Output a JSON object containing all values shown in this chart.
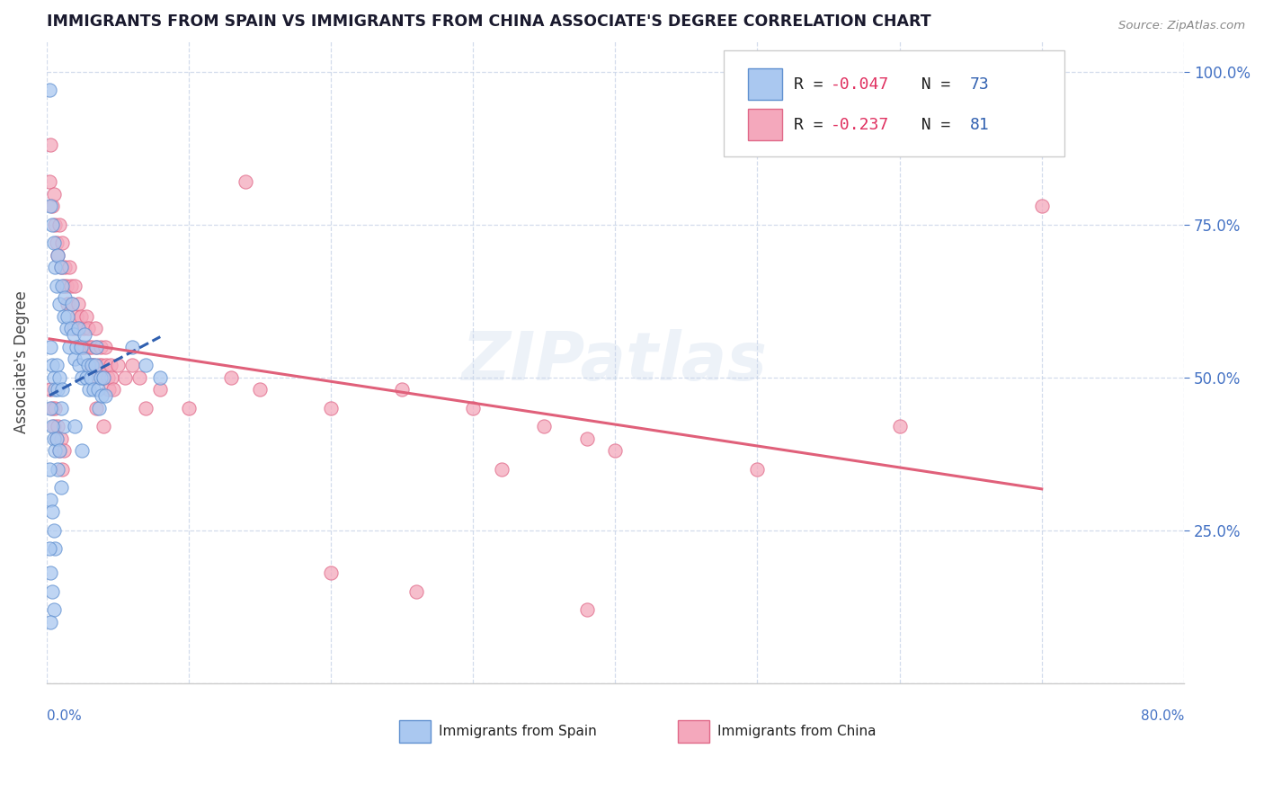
{
  "title": "IMMIGRANTS FROM SPAIN VS IMMIGRANTS FROM CHINA ASSOCIATE'S DEGREE CORRELATION CHART",
  "source": "Source: ZipAtlas.com",
  "ylabel": "Associate's Degree",
  "right_yticks": [
    "25.0%",
    "50.0%",
    "75.0%",
    "100.0%"
  ],
  "right_ytick_vals": [
    0.25,
    0.5,
    0.75,
    1.0
  ],
  "xmin": 0.0,
  "xmax": 0.8,
  "ymin": 0.0,
  "ymax": 1.05,
  "watermark": "ZIPatlas",
  "spain_color": "#aac8f0",
  "china_color": "#f4a8bc",
  "spain_edge_color": "#6090d0",
  "china_edge_color": "#e06888",
  "spain_line_color": "#3060b0",
  "china_line_color": "#e0607a",
  "legend_r_color": "#e03060",
  "legend_n_color": "#3060b0",
  "spain_scatter": [
    [
      0.002,
      0.97
    ],
    [
      0.003,
      0.78
    ],
    [
      0.004,
      0.75
    ],
    [
      0.005,
      0.72
    ],
    [
      0.006,
      0.68
    ],
    [
      0.007,
      0.65
    ],
    [
      0.008,
      0.7
    ],
    [
      0.009,
      0.62
    ],
    [
      0.01,
      0.68
    ],
    [
      0.011,
      0.65
    ],
    [
      0.012,
      0.6
    ],
    [
      0.013,
      0.63
    ],
    [
      0.014,
      0.58
    ],
    [
      0.015,
      0.6
    ],
    [
      0.016,
      0.55
    ],
    [
      0.017,
      0.58
    ],
    [
      0.018,
      0.62
    ],
    [
      0.019,
      0.57
    ],
    [
      0.02,
      0.53
    ],
    [
      0.021,
      0.55
    ],
    [
      0.022,
      0.58
    ],
    [
      0.023,
      0.52
    ],
    [
      0.024,
      0.55
    ],
    [
      0.025,
      0.5
    ],
    [
      0.026,
      0.53
    ],
    [
      0.027,
      0.57
    ],
    [
      0.028,
      0.5
    ],
    [
      0.029,
      0.52
    ],
    [
      0.03,
      0.48
    ],
    [
      0.031,
      0.5
    ],
    [
      0.032,
      0.52
    ],
    [
      0.033,
      0.48
    ],
    [
      0.034,
      0.52
    ],
    [
      0.035,
      0.55
    ],
    [
      0.036,
      0.48
    ],
    [
      0.037,
      0.45
    ],
    [
      0.038,
      0.5
    ],
    [
      0.039,
      0.47
    ],
    [
      0.04,
      0.5
    ],
    [
      0.041,
      0.47
    ],
    [
      0.003,
      0.55
    ],
    [
      0.004,
      0.52
    ],
    [
      0.005,
      0.5
    ],
    [
      0.006,
      0.48
    ],
    [
      0.007,
      0.52
    ],
    [
      0.008,
      0.48
    ],
    [
      0.009,
      0.5
    ],
    [
      0.01,
      0.45
    ],
    [
      0.011,
      0.48
    ],
    [
      0.012,
      0.42
    ],
    [
      0.003,
      0.45
    ],
    [
      0.004,
      0.42
    ],
    [
      0.005,
      0.4
    ],
    [
      0.006,
      0.38
    ],
    [
      0.007,
      0.4
    ],
    [
      0.008,
      0.35
    ],
    [
      0.009,
      0.38
    ],
    [
      0.01,
      0.32
    ],
    [
      0.002,
      0.35
    ],
    [
      0.003,
      0.3
    ],
    [
      0.004,
      0.28
    ],
    [
      0.005,
      0.25
    ],
    [
      0.006,
      0.22
    ],
    [
      0.002,
      0.22
    ],
    [
      0.003,
      0.18
    ],
    [
      0.004,
      0.15
    ],
    [
      0.005,
      0.12
    ],
    [
      0.003,
      0.1
    ],
    [
      0.06,
      0.55
    ],
    [
      0.07,
      0.52
    ],
    [
      0.08,
      0.5
    ],
    [
      0.02,
      0.42
    ],
    [
      0.025,
      0.38
    ]
  ],
  "china_scatter": [
    [
      0.002,
      0.82
    ],
    [
      0.003,
      0.88
    ],
    [
      0.004,
      0.78
    ],
    [
      0.005,
      0.8
    ],
    [
      0.006,
      0.75
    ],
    [
      0.007,
      0.72
    ],
    [
      0.008,
      0.7
    ],
    [
      0.009,
      0.75
    ],
    [
      0.01,
      0.68
    ],
    [
      0.011,
      0.72
    ],
    [
      0.012,
      0.65
    ],
    [
      0.013,
      0.68
    ],
    [
      0.014,
      0.65
    ],
    [
      0.015,
      0.62
    ],
    [
      0.016,
      0.68
    ],
    [
      0.017,
      0.65
    ],
    [
      0.018,
      0.62
    ],
    [
      0.019,
      0.58
    ],
    [
      0.02,
      0.65
    ],
    [
      0.021,
      0.6
    ],
    [
      0.022,
      0.62
    ],
    [
      0.023,
      0.58
    ],
    [
      0.024,
      0.6
    ],
    [
      0.025,
      0.55
    ],
    [
      0.026,
      0.58
    ],
    [
      0.027,
      0.55
    ],
    [
      0.028,
      0.6
    ],
    [
      0.029,
      0.58
    ],
    [
      0.03,
      0.55
    ],
    [
      0.031,
      0.52
    ],
    [
      0.032,
      0.55
    ],
    [
      0.033,
      0.52
    ],
    [
      0.034,
      0.58
    ],
    [
      0.035,
      0.55
    ],
    [
      0.036,
      0.5
    ],
    [
      0.037,
      0.52
    ],
    [
      0.038,
      0.55
    ],
    [
      0.039,
      0.52
    ],
    [
      0.04,
      0.5
    ],
    [
      0.041,
      0.55
    ],
    [
      0.042,
      0.52
    ],
    [
      0.043,
      0.5
    ],
    [
      0.044,
      0.48
    ],
    [
      0.045,
      0.52
    ],
    [
      0.046,
      0.5
    ],
    [
      0.047,
      0.48
    ],
    [
      0.05,
      0.52
    ],
    [
      0.055,
      0.5
    ],
    [
      0.06,
      0.52
    ],
    [
      0.065,
      0.5
    ],
    [
      0.003,
      0.48
    ],
    [
      0.004,
      0.45
    ],
    [
      0.005,
      0.42
    ],
    [
      0.006,
      0.45
    ],
    [
      0.007,
      0.4
    ],
    [
      0.008,
      0.42
    ],
    [
      0.009,
      0.38
    ],
    [
      0.01,
      0.4
    ],
    [
      0.011,
      0.35
    ],
    [
      0.012,
      0.38
    ],
    [
      0.035,
      0.45
    ],
    [
      0.04,
      0.42
    ],
    [
      0.07,
      0.45
    ],
    [
      0.08,
      0.48
    ],
    [
      0.1,
      0.45
    ],
    [
      0.13,
      0.5
    ],
    [
      0.15,
      0.48
    ],
    [
      0.2,
      0.45
    ],
    [
      0.25,
      0.48
    ],
    [
      0.3,
      0.45
    ],
    [
      0.35,
      0.42
    ],
    [
      0.38,
      0.4
    ],
    [
      0.14,
      0.82
    ],
    [
      0.32,
      0.35
    ],
    [
      0.2,
      0.18
    ],
    [
      0.26,
      0.15
    ],
    [
      0.38,
      0.12
    ],
    [
      0.4,
      0.38
    ],
    [
      0.5,
      0.35
    ],
    [
      0.6,
      0.42
    ],
    [
      0.7,
      0.78
    ]
  ]
}
